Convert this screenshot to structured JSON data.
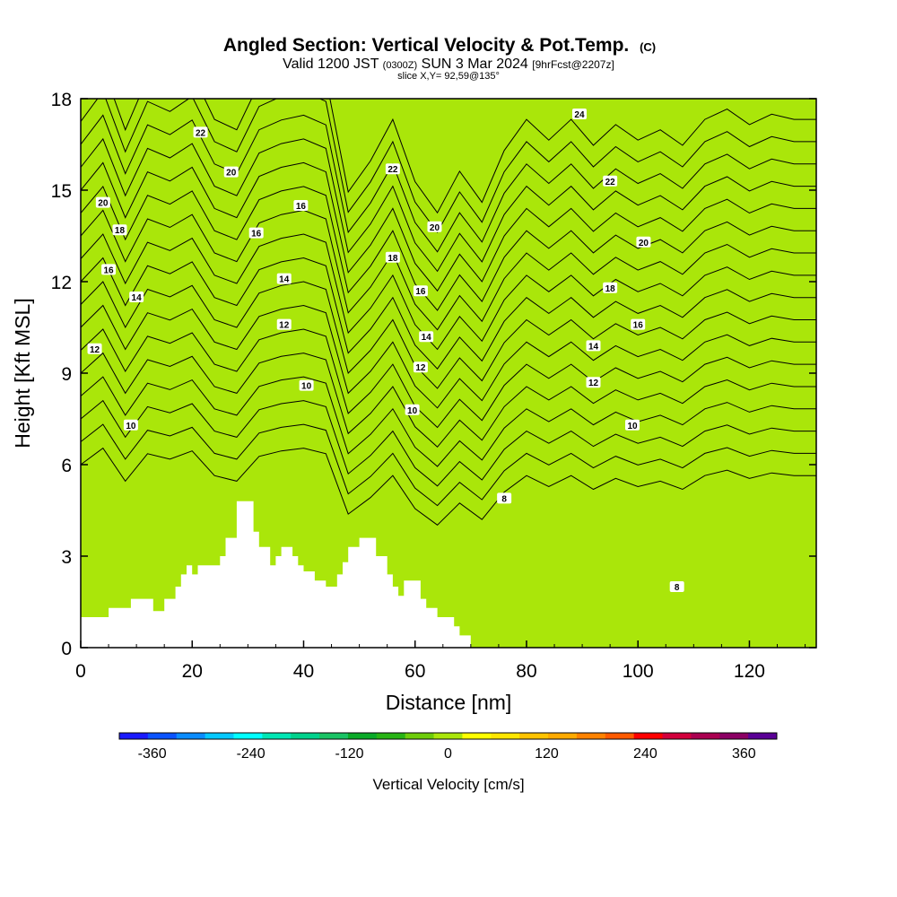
{
  "chart_data": {
    "type": "heatmap",
    "title": "Angled Section: Vertical Velocity & Pot.Temp.",
    "title_units": "(C)",
    "subtitle_parts": [
      "Valid 1200 JST",
      "(0300Z)",
      "SUN 3 Mar 2024",
      "[9hrFcst@2207z]"
    ],
    "slice_label": "slice X,Y= 92,59@135°",
    "xlabel": "Distance [nm]",
    "ylabel": "Height [Kft MSL]",
    "xlim": [
      0,
      132
    ],
    "ylim": [
      0,
      18
    ],
    "xticks": [
      "0",
      "20",
      "40",
      "60",
      "80",
      "100",
      "120"
    ],
    "yticks": [
      "0",
      "3",
      "6",
      "9",
      "12",
      "15",
      "18"
    ],
    "grid": false,
    "colorbar": {
      "label": "Vertical Velocity [cm/s]",
      "tick_labels": [
        "-360",
        "-240",
        "-120",
        "0",
        "120",
        "240",
        "360"
      ],
      "tick_values": [
        -360,
        -240,
        -120,
        0,
        120,
        240,
        360
      ],
      "min": -400,
      "max": 400,
      "colors": [
        "#1a1aff",
        "#0a53ff",
        "#0a8cff",
        "#05c8ff",
        "#00ffff",
        "#00e6b4",
        "#00d28c",
        "#19c364",
        "#0aaa28",
        "#28b414",
        "#6ecd0a",
        "#aae60a",
        "#ffff00",
        "#ffe600",
        "#ffc300",
        "#ffaa00",
        "#ff8200",
        "#ff5a00",
        "#ff0000",
        "#d2003c",
        "#aa0050",
        "#8c0064",
        "#5a0096"
      ]
    },
    "terrain_profile": [
      [
        0,
        1
      ],
      [
        5,
        1
      ],
      [
        5,
        1.3
      ],
      [
        9,
        1.3
      ],
      [
        9,
        1.6
      ],
      [
        13,
        1.6
      ],
      [
        13,
        1.2
      ],
      [
        15,
        1.2
      ],
      [
        15,
        1.6
      ],
      [
        17,
        1.6
      ],
      [
        17,
        2
      ],
      [
        18,
        2
      ],
      [
        18,
        2.4
      ],
      [
        19,
        2.4
      ],
      [
        19,
        2.7
      ],
      [
        20,
        2.7
      ],
      [
        20,
        2.4
      ],
      [
        21,
        2.4
      ],
      [
        21,
        2.7
      ],
      [
        24,
        2.7
      ],
      [
        24,
        2.7
      ],
      [
        25,
        2.7
      ],
      [
        25,
        3
      ],
      [
        26,
        3
      ],
      [
        26,
        3.6
      ],
      [
        28,
        3.6
      ],
      [
        28,
        4.8
      ],
      [
        31,
        4.8
      ],
      [
        31,
        3.8
      ],
      [
        32,
        3.8
      ],
      [
        32,
        3.3
      ],
      [
        34,
        3.3
      ],
      [
        34,
        2.7
      ],
      [
        35,
        2.7
      ],
      [
        35,
        3
      ],
      [
        36,
        3
      ],
      [
        36,
        3.3
      ],
      [
        38,
        3.3
      ],
      [
        38,
        3
      ],
      [
        39,
        3
      ],
      [
        39,
        2.7
      ],
      [
        40,
        2.7
      ],
      [
        40,
        2.5
      ],
      [
        42,
        2.5
      ],
      [
        42,
        2.2
      ],
      [
        44,
        2.2
      ],
      [
        44,
        2
      ],
      [
        46,
        2
      ],
      [
        46,
        2.4
      ],
      [
        47,
        2.4
      ],
      [
        47,
        2.8
      ],
      [
        48,
        2.8
      ],
      [
        48,
        3.3
      ],
      [
        50,
        3.3
      ],
      [
        50,
        3.6
      ],
      [
        53,
        3.6
      ],
      [
        53,
        3
      ],
      [
        55,
        3
      ],
      [
        55,
        2.4
      ],
      [
        56,
        2.4
      ],
      [
        56,
        2
      ],
      [
        57,
        2
      ],
      [
        57,
        1.7
      ],
      [
        58,
        1.7
      ],
      [
        58,
        2.2
      ],
      [
        61,
        2.2
      ],
      [
        61,
        1.6
      ],
      [
        62,
        1.6
      ],
      [
        62,
        1.3
      ],
      [
        64,
        1.3
      ],
      [
        64,
        1
      ],
      [
        67,
        1
      ],
      [
        67,
        0.7
      ],
      [
        68,
        0.7
      ],
      [
        68,
        0.4
      ],
      [
        70,
        0.4
      ],
      [
        70,
        0
      ],
      [
        132,
        0
      ]
    ],
    "theta_levels": [
      8,
      9,
      10,
      11,
      12,
      13,
      14,
      15,
      16,
      17,
      18,
      19,
      20,
      21,
      22,
      23,
      24
    ],
    "contour_labels": [
      {
        "v": "22",
        "x": 21.5,
        "y": 16.9
      },
      {
        "v": "20",
        "x": 27,
        "y": 15.6
      },
      {
        "v": "20",
        "x": 4,
        "y": 14.6
      },
      {
        "v": "18",
        "x": 7,
        "y": 13.7
      },
      {
        "v": "16",
        "x": 31.5,
        "y": 13.6
      },
      {
        "v": "16",
        "x": 39.5,
        "y": 14.5
      },
      {
        "v": "16",
        "x": 5,
        "y": 12.4
      },
      {
        "v": "14",
        "x": 36.5,
        "y": 12.1
      },
      {
        "v": "14",
        "x": 10,
        "y": 11.5
      },
      {
        "v": "12",
        "x": 36.5,
        "y": 10.6
      },
      {
        "v": "12",
        "x": 2.5,
        "y": 9.8
      },
      {
        "v": "10",
        "x": 40.5,
        "y": 8.6
      },
      {
        "v": "10",
        "x": 9,
        "y": 7.3
      },
      {
        "v": "22",
        "x": 56,
        "y": 15.7
      },
      {
        "v": "20",
        "x": 63.5,
        "y": 13.8
      },
      {
        "v": "18",
        "x": 56,
        "y": 12.8
      },
      {
        "v": "16",
        "x": 61,
        "y": 11.7
      },
      {
        "v": "14",
        "x": 62,
        "y": 10.2
      },
      {
        "v": "12",
        "x": 61,
        "y": 9.2
      },
      {
        "v": "10",
        "x": 59.5,
        "y": 7.8
      },
      {
        "v": "8",
        "x": 76,
        "y": 4.9
      },
      {
        "v": "24",
        "x": 89.5,
        "y": 17.5
      },
      {
        "v": "22",
        "x": 95,
        "y": 15.3
      },
      {
        "v": "20",
        "x": 101,
        "y": 13.3
      },
      {
        "v": "18",
        "x": 95,
        "y": 11.8
      },
      {
        "v": "16",
        "x": 100,
        "y": 10.6
      },
      {
        "v": "14",
        "x": 92,
        "y": 9.9
      },
      {
        "v": "12",
        "x": 92,
        "y": 8.7
      },
      {
        "v": "10",
        "x": 99,
        "y": 7.3
      },
      {
        "v": "8",
        "x": 107,
        "y": 2
      }
    ]
  }
}
